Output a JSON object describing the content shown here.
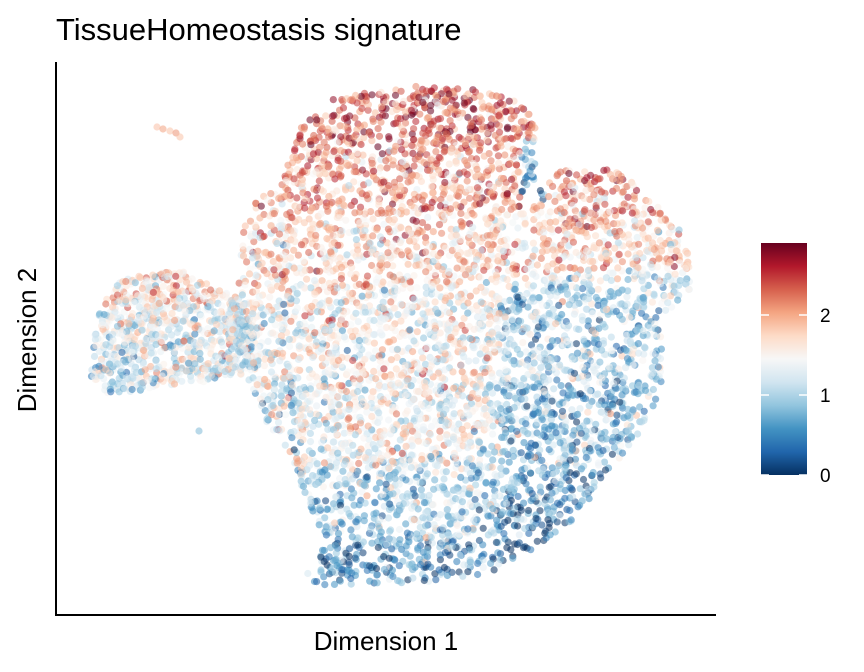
{
  "chart_data": {
    "type": "scatter",
    "title": "TissueHomeostasis signature",
    "xlabel": "Dimension 1",
    "ylabel": "Dimension 2",
    "x_ticks_shown": false,
    "y_ticks_shown": false,
    "grid": false,
    "legend_position": "right",
    "colorbar": {
      "ticks": [
        0,
        1,
        2
      ],
      "range": [
        0,
        2.9
      ],
      "palette": [
        "#053061",
        "#2166ac",
        "#4393c3",
        "#92c5de",
        "#d1e5f0",
        "#f7f7f7",
        "#fddbc7",
        "#f4a582",
        "#d6604d",
        "#b2182b",
        "#67001f"
      ]
    },
    "point_opacity": 0.55
  }
}
